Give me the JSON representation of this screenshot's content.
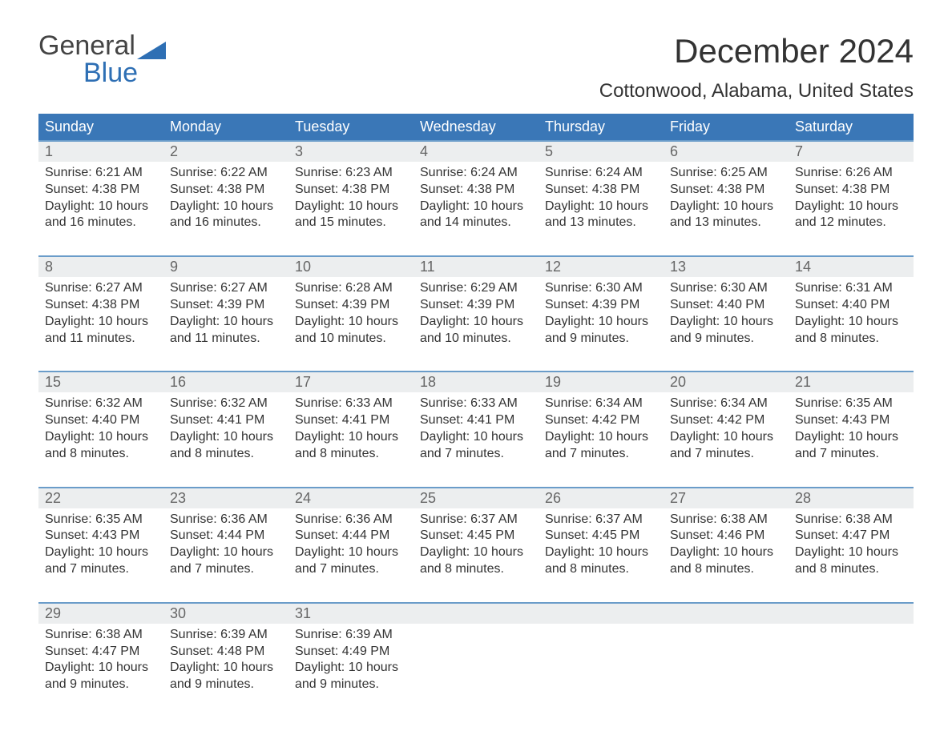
{
  "logo": {
    "top": "General",
    "bottom": "Blue"
  },
  "title": "December 2024",
  "location": "Cottonwood, Alabama, United States",
  "colors": {
    "header_bg": "#3a77b7",
    "header_text": "#ffffff",
    "week_border": "#6a9cc9",
    "daynum_bg": "#eceeef",
    "daynum_text": "#666666",
    "body_text": "#333333",
    "logo_gray": "#444444",
    "logo_blue": "#2e6fb4",
    "page_bg": "#ffffff"
  },
  "fonts": {
    "title_size_pt": 32,
    "location_size_pt": 18,
    "header_size_pt": 14,
    "body_size_pt": 12,
    "daynum_size_pt": 14
  },
  "layout": {
    "columns": 7,
    "rows": 5,
    "first_weekday": "Sunday"
  },
  "weekdays": [
    "Sunday",
    "Monday",
    "Tuesday",
    "Wednesday",
    "Thursday",
    "Friday",
    "Saturday"
  ],
  "weeks": [
    [
      {
        "n": "1",
        "sunrise": "Sunrise: 6:21 AM",
        "sunset": "Sunset: 4:38 PM",
        "day1": "Daylight: 10 hours",
        "day2": "and 16 minutes."
      },
      {
        "n": "2",
        "sunrise": "Sunrise: 6:22 AM",
        "sunset": "Sunset: 4:38 PM",
        "day1": "Daylight: 10 hours",
        "day2": "and 16 minutes."
      },
      {
        "n": "3",
        "sunrise": "Sunrise: 6:23 AM",
        "sunset": "Sunset: 4:38 PM",
        "day1": "Daylight: 10 hours",
        "day2": "and 15 minutes."
      },
      {
        "n": "4",
        "sunrise": "Sunrise: 6:24 AM",
        "sunset": "Sunset: 4:38 PM",
        "day1": "Daylight: 10 hours",
        "day2": "and 14 minutes."
      },
      {
        "n": "5",
        "sunrise": "Sunrise: 6:24 AM",
        "sunset": "Sunset: 4:38 PM",
        "day1": "Daylight: 10 hours",
        "day2": "and 13 minutes."
      },
      {
        "n": "6",
        "sunrise": "Sunrise: 6:25 AM",
        "sunset": "Sunset: 4:38 PM",
        "day1": "Daylight: 10 hours",
        "day2": "and 13 minutes."
      },
      {
        "n": "7",
        "sunrise": "Sunrise: 6:26 AM",
        "sunset": "Sunset: 4:38 PM",
        "day1": "Daylight: 10 hours",
        "day2": "and 12 minutes."
      }
    ],
    [
      {
        "n": "8",
        "sunrise": "Sunrise: 6:27 AM",
        "sunset": "Sunset: 4:38 PM",
        "day1": "Daylight: 10 hours",
        "day2": "and 11 minutes."
      },
      {
        "n": "9",
        "sunrise": "Sunrise: 6:27 AM",
        "sunset": "Sunset: 4:39 PM",
        "day1": "Daylight: 10 hours",
        "day2": "and 11 minutes."
      },
      {
        "n": "10",
        "sunrise": "Sunrise: 6:28 AM",
        "sunset": "Sunset: 4:39 PM",
        "day1": "Daylight: 10 hours",
        "day2": "and 10 minutes."
      },
      {
        "n": "11",
        "sunrise": "Sunrise: 6:29 AM",
        "sunset": "Sunset: 4:39 PM",
        "day1": "Daylight: 10 hours",
        "day2": "and 10 minutes."
      },
      {
        "n": "12",
        "sunrise": "Sunrise: 6:30 AM",
        "sunset": "Sunset: 4:39 PM",
        "day1": "Daylight: 10 hours",
        "day2": "and 9 minutes."
      },
      {
        "n": "13",
        "sunrise": "Sunrise: 6:30 AM",
        "sunset": "Sunset: 4:40 PM",
        "day1": "Daylight: 10 hours",
        "day2": "and 9 minutes."
      },
      {
        "n": "14",
        "sunrise": "Sunrise: 6:31 AM",
        "sunset": "Sunset: 4:40 PM",
        "day1": "Daylight: 10 hours",
        "day2": "and 8 minutes."
      }
    ],
    [
      {
        "n": "15",
        "sunrise": "Sunrise: 6:32 AM",
        "sunset": "Sunset: 4:40 PM",
        "day1": "Daylight: 10 hours",
        "day2": "and 8 minutes."
      },
      {
        "n": "16",
        "sunrise": "Sunrise: 6:32 AM",
        "sunset": "Sunset: 4:41 PM",
        "day1": "Daylight: 10 hours",
        "day2": "and 8 minutes."
      },
      {
        "n": "17",
        "sunrise": "Sunrise: 6:33 AM",
        "sunset": "Sunset: 4:41 PM",
        "day1": "Daylight: 10 hours",
        "day2": "and 8 minutes."
      },
      {
        "n": "18",
        "sunrise": "Sunrise: 6:33 AM",
        "sunset": "Sunset: 4:41 PM",
        "day1": "Daylight: 10 hours",
        "day2": "and 7 minutes."
      },
      {
        "n": "19",
        "sunrise": "Sunrise: 6:34 AM",
        "sunset": "Sunset: 4:42 PM",
        "day1": "Daylight: 10 hours",
        "day2": "and 7 minutes."
      },
      {
        "n": "20",
        "sunrise": "Sunrise: 6:34 AM",
        "sunset": "Sunset: 4:42 PM",
        "day1": "Daylight: 10 hours",
        "day2": "and 7 minutes."
      },
      {
        "n": "21",
        "sunrise": "Sunrise: 6:35 AM",
        "sunset": "Sunset: 4:43 PM",
        "day1": "Daylight: 10 hours",
        "day2": "and 7 minutes."
      }
    ],
    [
      {
        "n": "22",
        "sunrise": "Sunrise: 6:35 AM",
        "sunset": "Sunset: 4:43 PM",
        "day1": "Daylight: 10 hours",
        "day2": "and 7 minutes."
      },
      {
        "n": "23",
        "sunrise": "Sunrise: 6:36 AM",
        "sunset": "Sunset: 4:44 PM",
        "day1": "Daylight: 10 hours",
        "day2": "and 7 minutes."
      },
      {
        "n": "24",
        "sunrise": "Sunrise: 6:36 AM",
        "sunset": "Sunset: 4:44 PM",
        "day1": "Daylight: 10 hours",
        "day2": "and 7 minutes."
      },
      {
        "n": "25",
        "sunrise": "Sunrise: 6:37 AM",
        "sunset": "Sunset: 4:45 PM",
        "day1": "Daylight: 10 hours",
        "day2": "and 8 minutes."
      },
      {
        "n": "26",
        "sunrise": "Sunrise: 6:37 AM",
        "sunset": "Sunset: 4:45 PM",
        "day1": "Daylight: 10 hours",
        "day2": "and 8 minutes."
      },
      {
        "n": "27",
        "sunrise": "Sunrise: 6:38 AM",
        "sunset": "Sunset: 4:46 PM",
        "day1": "Daylight: 10 hours",
        "day2": "and 8 minutes."
      },
      {
        "n": "28",
        "sunrise": "Sunrise: 6:38 AM",
        "sunset": "Sunset: 4:47 PM",
        "day1": "Daylight: 10 hours",
        "day2": "and 8 minutes."
      }
    ],
    [
      {
        "n": "29",
        "sunrise": "Sunrise: 6:38 AM",
        "sunset": "Sunset: 4:47 PM",
        "day1": "Daylight: 10 hours",
        "day2": "and 9 minutes."
      },
      {
        "n": "30",
        "sunrise": "Sunrise: 6:39 AM",
        "sunset": "Sunset: 4:48 PM",
        "day1": "Daylight: 10 hours",
        "day2": "and 9 minutes."
      },
      {
        "n": "31",
        "sunrise": "Sunrise: 6:39 AM",
        "sunset": "Sunset: 4:49 PM",
        "day1": "Daylight: 10 hours",
        "day2": "and 9 minutes."
      },
      null,
      null,
      null,
      null
    ]
  ]
}
